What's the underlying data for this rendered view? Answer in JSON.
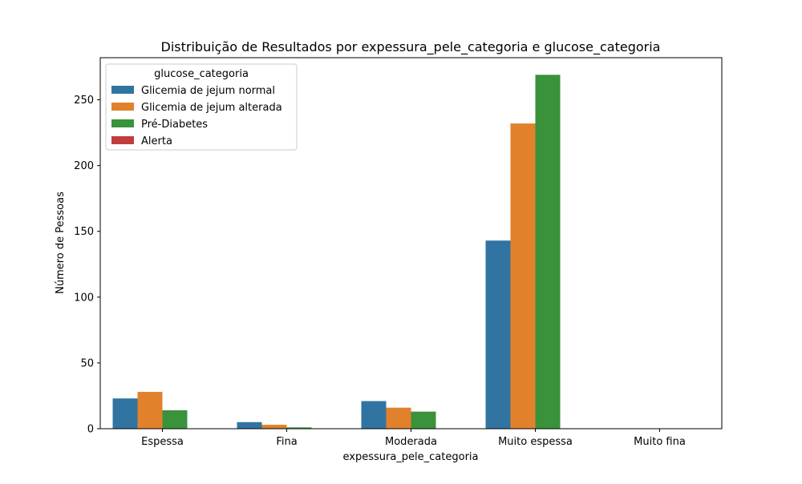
{
  "chart_data": {
    "type": "bar",
    "title": "Distribuição de Resultados por expessura_pele_categoria e glucose_categoria",
    "xlabel": "expessura_pele_categoria",
    "ylabel": "Número de Pessoas",
    "categories": [
      "Espessa",
      "Fina",
      "Moderada",
      "Muito espessa",
      "Muito fina"
    ],
    "ylim": [
      0,
      282
    ],
    "yticks": [
      0,
      50,
      100,
      150,
      200,
      250
    ],
    "grid": false,
    "legend": {
      "title": "glucose_categoria",
      "placement": "top-left"
    },
    "series": [
      {
        "name": "Glicemia de jejum normal",
        "color": "#3274a1",
        "values": [
          23,
          5,
          21,
          143,
          0
        ]
      },
      {
        "name": "Glicemia de jejum alterada",
        "color": "#e1812c",
        "values": [
          28,
          3,
          16,
          232,
          0
        ]
      },
      {
        "name": "Pré-Diabetes",
        "color": "#3a923a",
        "values": [
          14,
          1,
          13,
          269,
          0
        ]
      },
      {
        "name": "Alerta",
        "color": "#c03d3e",
        "values": [
          0,
          0,
          0,
          0,
          0
        ]
      }
    ]
  }
}
